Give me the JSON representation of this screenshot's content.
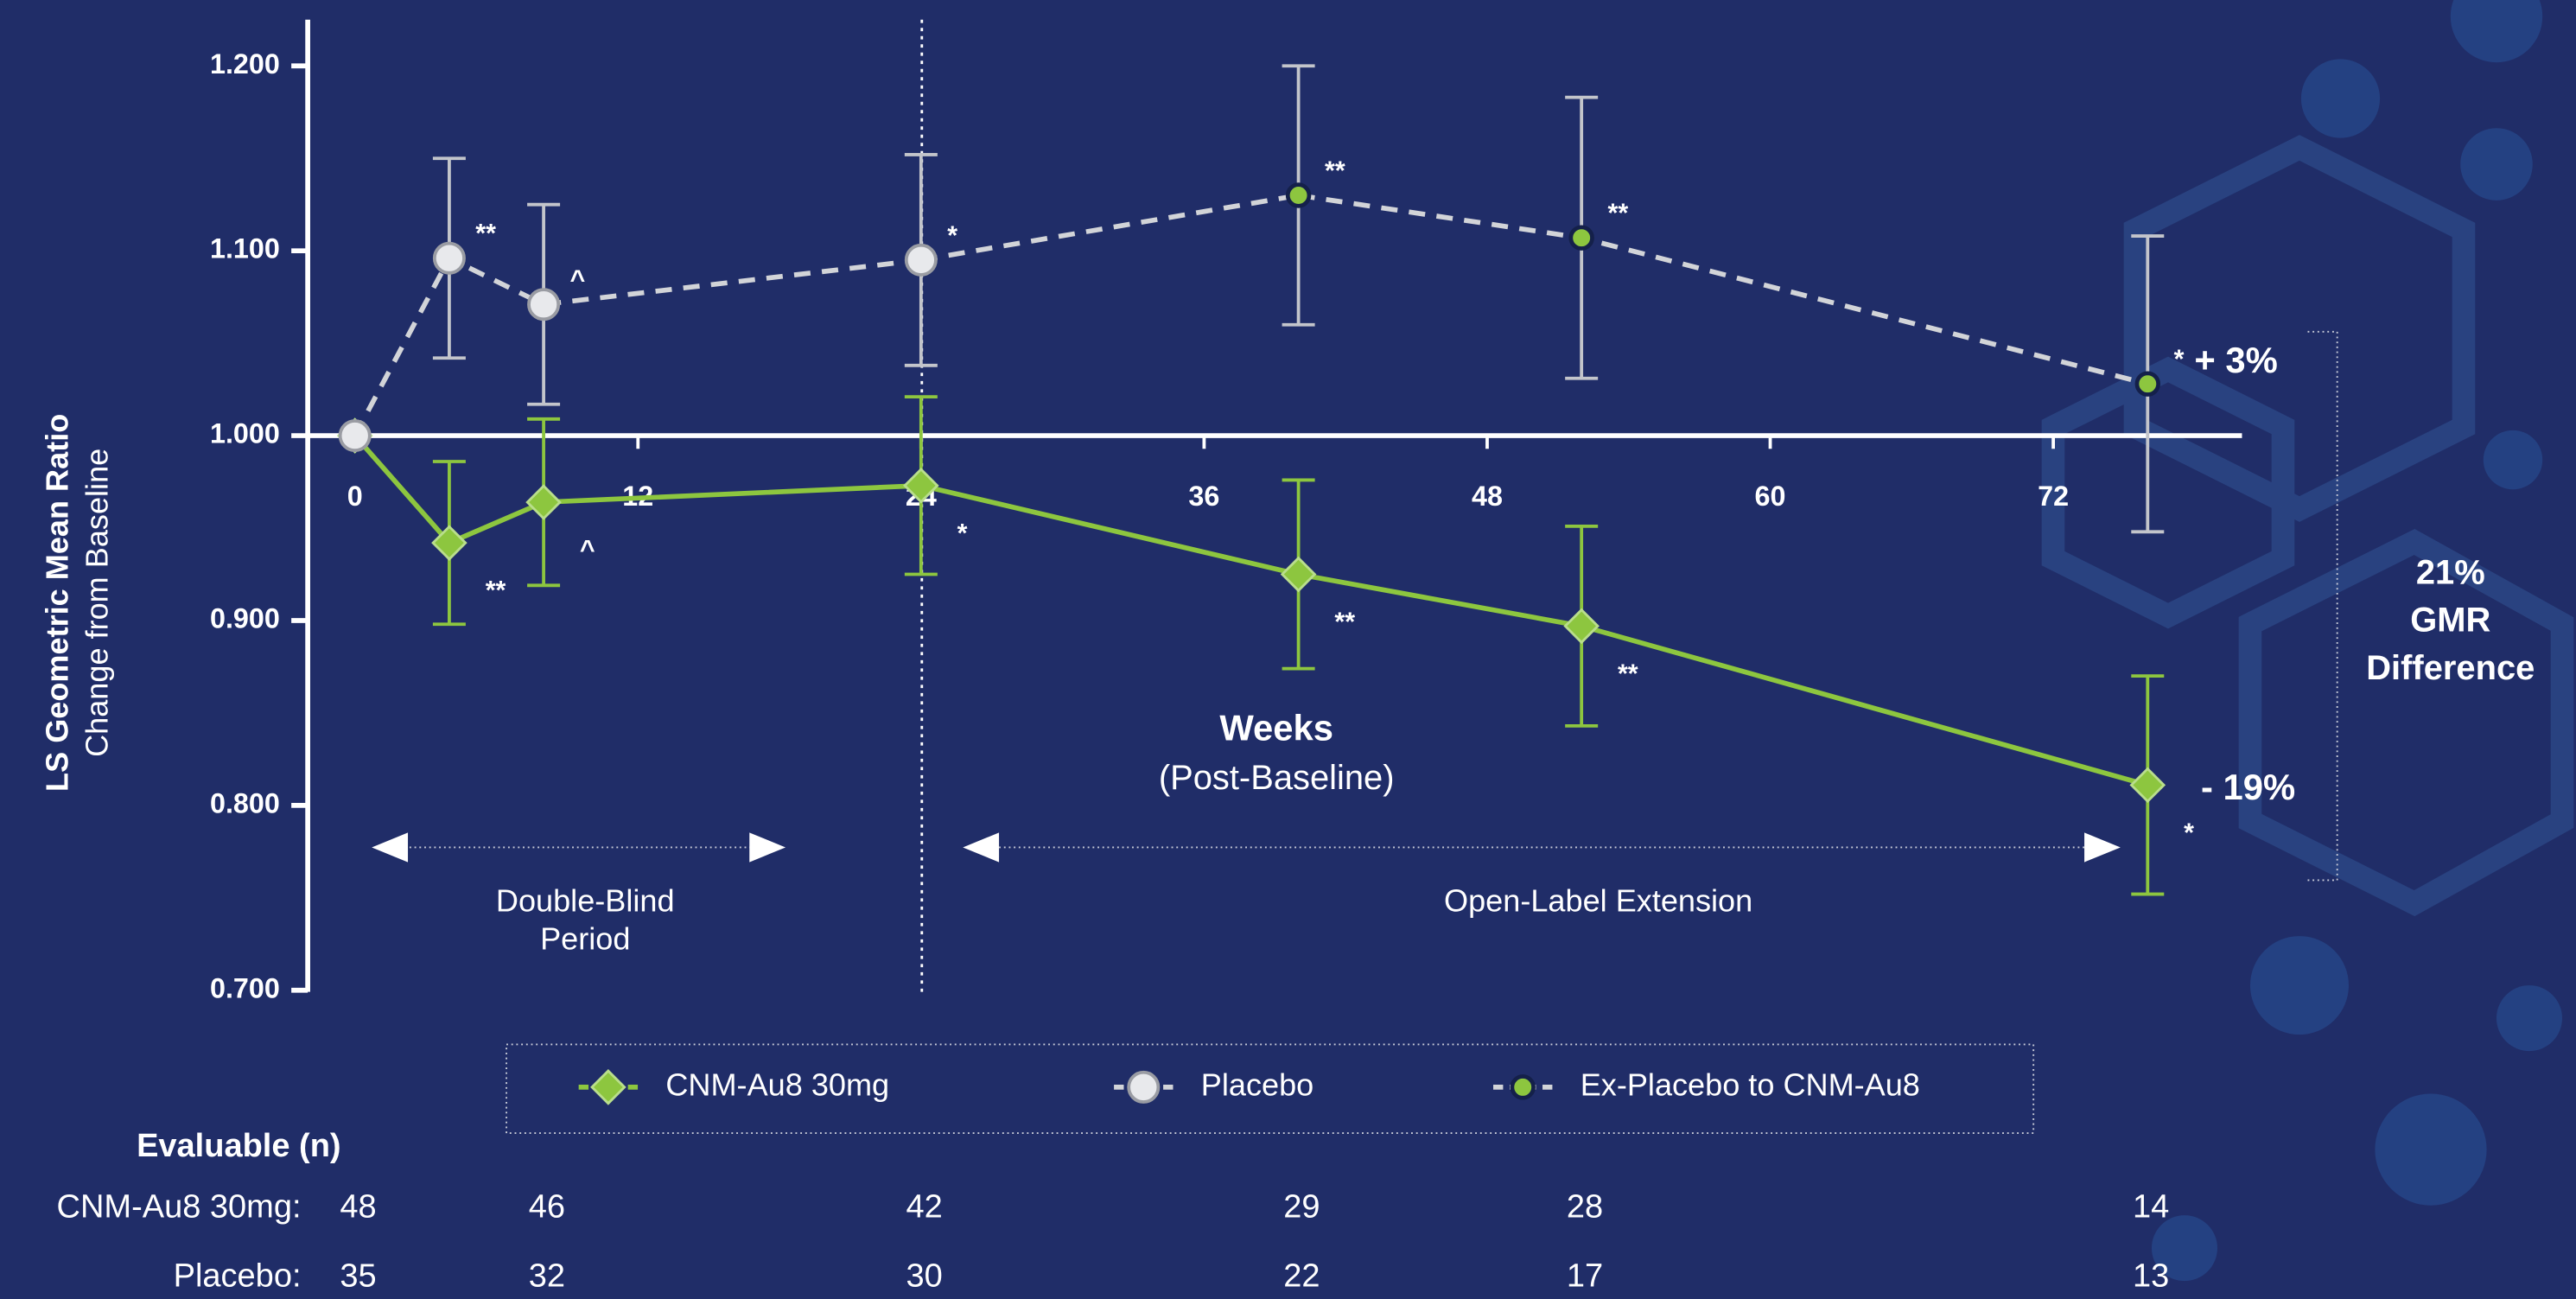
{
  "chart_data": {
    "type": "line",
    "ylabel": "LS Geometric Mean Ratio",
    "ylabel_sub": "Change from Baseline",
    "xlabel": "Weeks",
    "xlabel_sub": "(Post-Baseline)",
    "xlim": [
      -2,
      80
    ],
    "xticks": [
      0,
      12,
      24,
      36,
      48,
      60,
      72
    ],
    "ylim": [
      0.7,
      1.225
    ],
    "yticks": [
      {
        "value": 0.7,
        "label": "0.700"
      },
      {
        "value": 0.8,
        "label": "0.800"
      },
      {
        "value": 0.9,
        "label": "0.900"
      },
      {
        "value": 1.0,
        "label": "1.000"
      },
      {
        "value": 1.1,
        "label": "1.100"
      },
      {
        "value": 1.2,
        "label": "1.200"
      }
    ],
    "legend": "bottom",
    "series": [
      {
        "name": "CNM-Au8 30mg",
        "color": "#8dc63f",
        "marker": "diamond",
        "dashed": false,
        "x": [
          0,
          4,
          8,
          24,
          40,
          52,
          76
        ],
        "values": [
          1.0,
          0.942,
          0.964,
          0.973,
          0.925,
          0.897,
          0.811
        ],
        "errors": [
          null,
          0.044,
          0.045,
          0.048,
          0.051,
          0.054,
          0.059
        ],
        "point_labels": [
          null,
          "**",
          "^",
          "*",
          "**",
          "**",
          "*"
        ]
      },
      {
        "name": "Placebo",
        "color": "#d2d4d8",
        "marker": "circle",
        "dashed": true,
        "x": [
          0,
          4,
          8,
          24
        ],
        "values": [
          1.0,
          1.096,
          1.071,
          1.095
        ],
        "errors": [
          null,
          0.054,
          0.054,
          0.057
        ],
        "point_labels": [
          null,
          "**",
          "^",
          "*"
        ]
      },
      {
        "name": "Ex-Placebo to CNM-Au8",
        "color": "#8dc63f",
        "marker": "dot",
        "dashed": true,
        "x": [
          40,
          52,
          76
        ],
        "values": [
          1.13,
          1.107,
          1.028
        ],
        "errors": [
          0.07,
          0.076,
          0.08
        ],
        "point_labels": [
          "**",
          "**",
          "*"
        ]
      }
    ],
    "annotations": {
      "placebo_end": "+ 3%",
      "drug_end": "- 19%",
      "difference": [
        "21%",
        "GMR",
        "Difference"
      ],
      "period_1": [
        "Double-Blind",
        "Period"
      ],
      "period_2": "Open-Label Extension"
    },
    "evaluable": {
      "title": "Evaluable (n)",
      "x": [
        0,
        8,
        24,
        40,
        52,
        76
      ],
      "rows": [
        {
          "label": "CNM-Au8 30mg:",
          "values": [
            48,
            46,
            42,
            29,
            28,
            14
          ]
        },
        {
          "label": "Placebo:",
          "values": [
            35,
            32,
            30,
            22,
            17,
            13
          ]
        }
      ]
    }
  }
}
